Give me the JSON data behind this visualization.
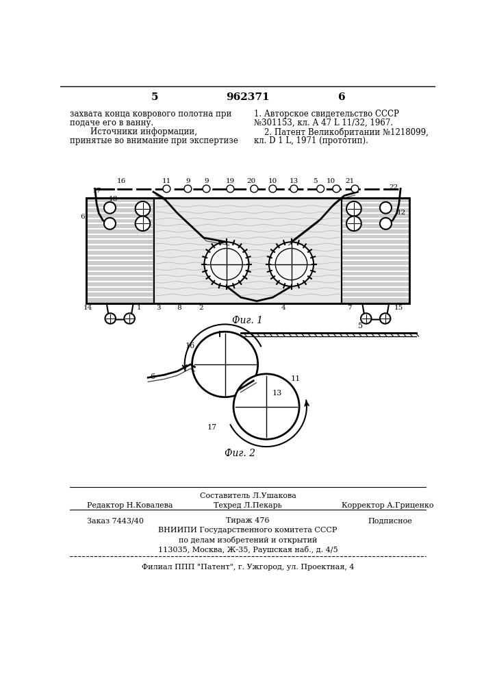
{
  "bg_color": "#ffffff",
  "page_number_left": "5",
  "page_number_center": "962371",
  "page_number_right": "6",
  "text_left_col": [
    "захвата конца коврового полотна при",
    "подаче его в ванну.",
    "        Источники информации,",
    "принятые во внимание при экспертизе"
  ],
  "text_right_col": [
    "1. Авторское свидетельство СССР",
    "№301153, кл. А 47 L 11/32, 1967.",
    "    2. Патент Великобритании №1218099,",
    "кл. D 1 L, 1971 (прототип)."
  ],
  "fig1_caption": "Фиг. 1",
  "fig2_caption": "Фиг. 2",
  "footer_sestavitel": "Составитель Л.Ушакова",
  "footer_redaktor": "Редактор Н.Ковалева",
  "footer_tekhred": "Техред Л.Пекарь",
  "footer_korrektor": "Корректор А.Гриценко",
  "footer_zakaz": "Заказ 7443/40",
  "footer_tirazh": "Тираж 476",
  "footer_podpisnoe": "Подписное",
  "footer_vniipи": "ВНИИПИ Государственного комитета СССР",
  "footer_dela": "по делам изобретений и открытий",
  "footer_address": "113035, Москва, Ж-35, Раушская наб., д. 4/5",
  "footer_filial": "Филиал ППП \"Патент\", г. Ужгород, ул. Проектная, 4"
}
